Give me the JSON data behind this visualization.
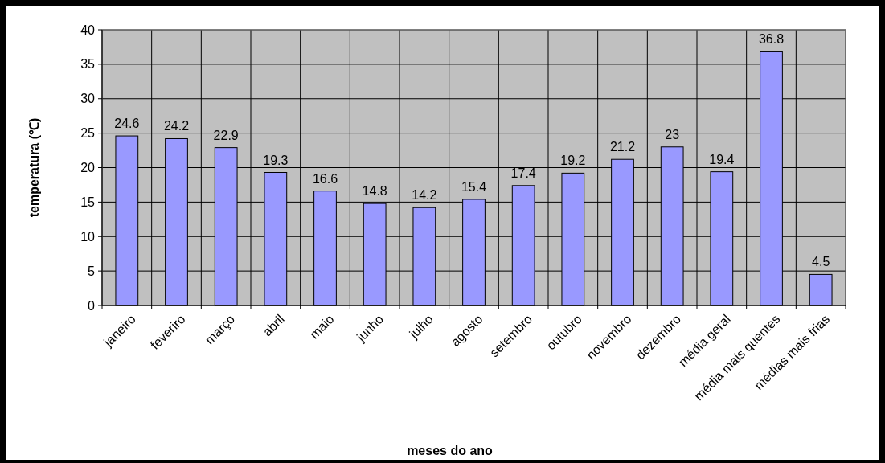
{
  "chart_data": {
    "type": "bar",
    "xlabel": "meses do ano",
    "ylabel": "temperatura (℃)",
    "categories": [
      "janeiro",
      "feveriro",
      "março",
      "abril",
      "maio",
      "junho",
      "julho",
      "agosto",
      "setembro",
      "outubro",
      "novembro",
      "dezembro",
      "média geral",
      "média mais quentes",
      "médias mais frias"
    ],
    "values": [
      24.6,
      24.2,
      22.9,
      19.3,
      16.6,
      14.8,
      14.2,
      15.4,
      17.4,
      19.2,
      21.2,
      23,
      19.4,
      36.8,
      4.5
    ],
    "color": "#9999ff",
    "ylim": [
      0,
      40
    ],
    "yticks": [
      0,
      5,
      10,
      15,
      20,
      25,
      30,
      35,
      40
    ],
    "grid": true,
    "data_labels": true
  }
}
